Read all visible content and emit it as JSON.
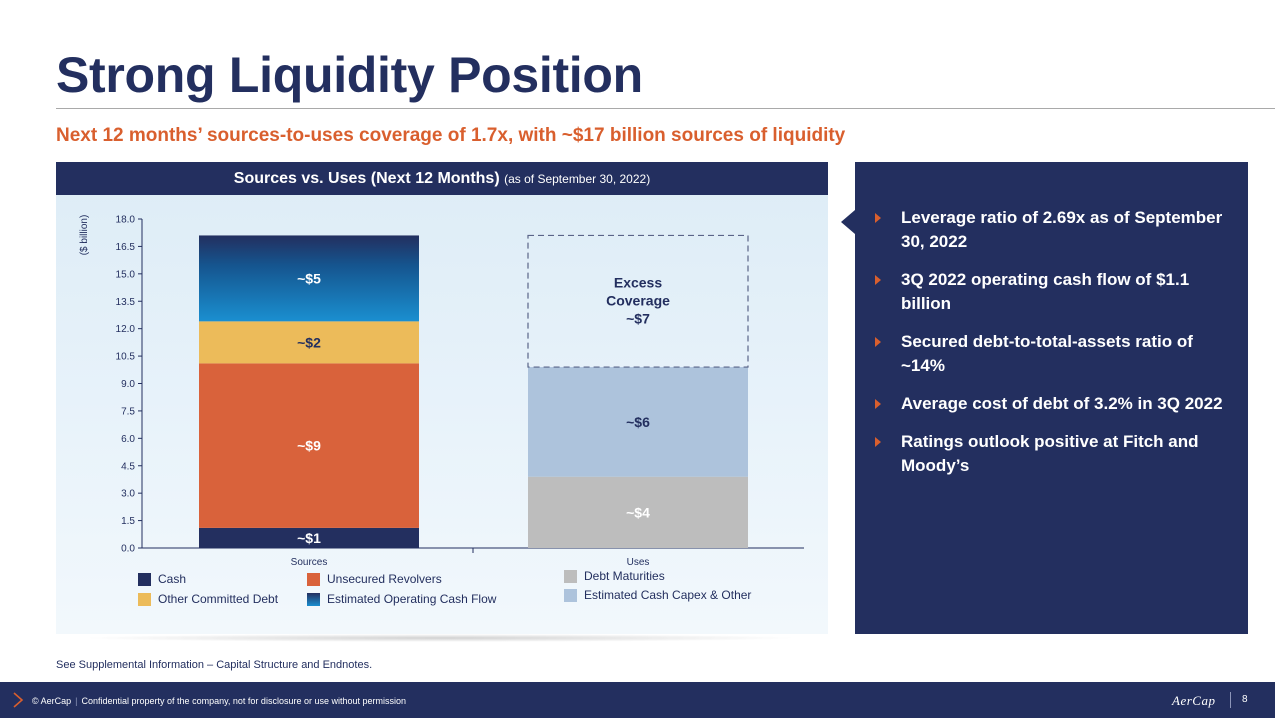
{
  "title": "Strong Liquidity Position",
  "subtitle": "Next 12 months’ sources-to-uses coverage of 1.7x, with ~$17 billion sources of liquidity",
  "panel": {
    "header_main": "Sources vs. Uses (Next 12 Months)",
    "header_sub": "(as of September 30, 2022)"
  },
  "chart_data": {
    "type": "bar",
    "stacked": true,
    "categories": [
      "Sources",
      "Uses"
    ],
    "ylabel": "($ billion)",
    "ylim": [
      0,
      18
    ],
    "yticks": [
      "0.0",
      "1.5",
      "3.0",
      "4.5",
      "6.0",
      "7.5",
      "9.0",
      "10.5",
      "12.0",
      "13.5",
      "15.0",
      "16.5",
      "18.0"
    ],
    "grid": false,
    "series": [
      {
        "name": "Cash",
        "category": "Sources",
        "value": 1.1,
        "label": "~$1",
        "color": "#232f5f",
        "label_color": "#ffffff"
      },
      {
        "name": "Unsecured Revolvers",
        "category": "Sources",
        "value": 9.0,
        "label": "~$9",
        "color": "#d9623b",
        "label_color": "#ffffff"
      },
      {
        "name": "Other Committed Debt",
        "category": "Sources",
        "value": 2.3,
        "label": "~$2",
        "color": "#ecbb5a",
        "label_color": "#232f5f"
      },
      {
        "name": "Estimated Operating Cash Flow",
        "category": "Sources",
        "value": 4.7,
        "label": "~$5",
        "color": "#1a86c8",
        "label_color": "#ffffff",
        "gradient": true
      },
      {
        "name": "Debt Maturities",
        "category": "Uses",
        "value": 3.9,
        "label": "~$4",
        "color": "#bdbdbd",
        "label_color": "#ffffff"
      },
      {
        "name": "Estimated Cash Capex & Other",
        "category": "Uses",
        "value": 6.0,
        "label": "~$6",
        "color": "#adc3dc",
        "label_color": "#232f5f"
      }
    ],
    "excess": {
      "category": "Uses",
      "base": 9.9,
      "top": 17.1,
      "lines": [
        "Excess",
        "Coverage",
        "~$7"
      ]
    },
    "legend": [
      {
        "name": "Cash",
        "color": "#232f5f"
      },
      {
        "name": "Unsecured Revolvers",
        "color": "#d9623b"
      },
      {
        "name": "Debt Maturities",
        "color": "#bdbdbd"
      },
      {
        "name": "Other Committed Debt",
        "color": "#ecbb5a"
      },
      {
        "name": "Estimated Operating Cash Flow",
        "color": "#1a86c8"
      },
      {
        "name": "Estimated Cash Capex & Other",
        "color": "#adc3dc"
      }
    ]
  },
  "bullets": [
    "Leverage ratio of 2.69x as of September 30, 2022",
    "3Q 2022 operating cash flow of $1.1 billion",
    "Secured debt-to-total-assets ratio of ~14%",
    "Average cost of debt of 3.2% in 3Q 2022",
    "Ratings outlook positive at Fitch and Moody’s"
  ],
  "footnote": "See Supplemental Information – Capital Structure and Endnotes.",
  "footer": {
    "copyright": "© AerCap",
    "notice": "Confidential property of the company, not for disclosure or use without permission",
    "logo": "AerCap",
    "page": "8"
  },
  "colors": {
    "navy": "#232f5f",
    "accent": "#d95f2e"
  }
}
